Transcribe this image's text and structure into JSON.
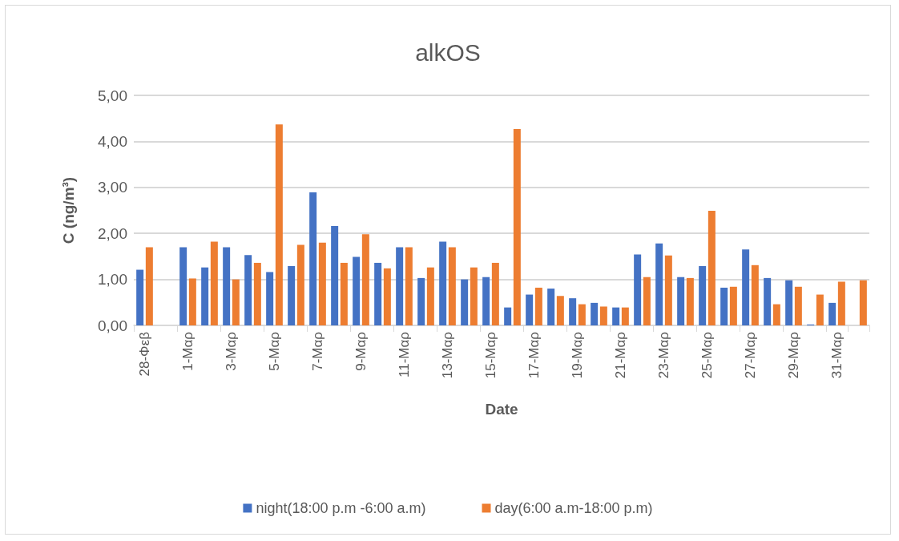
{
  "chart_data": {
    "type": "bar",
    "title": "alkOS",
    "xlabel": "Date",
    "ylabel": "C (ng/m³)",
    "categories": [
      "28-Φεβ",
      null,
      "1-Μαρ",
      null,
      "3-Μαρ",
      null,
      "5-Μαρ",
      null,
      "7-Μαρ",
      null,
      "9-Μαρ",
      null,
      "11-Μαρ",
      null,
      "13-Μαρ",
      null,
      "15-Μαρ",
      null,
      "17-Μαρ",
      null,
      "19-Μαρ",
      null,
      "21-Μαρ",
      null,
      "23-Μαρ",
      null,
      "25-Μαρ",
      null,
      "27-Μαρ",
      null,
      "29-Μαρ",
      null,
      "31-Μαρ",
      null
    ],
    "series": [
      {
        "name": "night(18:00 p.m -6:00 a.m)",
        "color": "#4472c4",
        "values": [
          1.21,
          null,
          1.7,
          1.26,
          1.7,
          1.53,
          1.16,
          1.29,
          2.89,
          2.16,
          1.49,
          1.36,
          1.7,
          1.03,
          1.82,
          1.0,
          1.05,
          0.39,
          0.67,
          0.8,
          0.59,
          0.49,
          0.39,
          1.54,
          1.78,
          1.05,
          1.29,
          0.82,
          1.65,
          1.03,
          0.98,
          0.02,
          0.49,
          null
        ]
      },
      {
        "name": "day(6:00 a.m-18:00 p.m)",
        "color": "#ed7d31",
        "values": [
          1.7,
          null,
          1.02,
          1.82,
          1.0,
          1.36,
          4.37,
          1.75,
          1.8,
          1.36,
          1.98,
          1.24,
          1.7,
          1.26,
          1.7,
          1.26,
          1.36,
          4.27,
          0.82,
          0.64,
          0.46,
          0.41,
          0.39,
          1.05,
          1.52,
          1.03,
          2.49,
          0.84,
          1.31,
          0.46,
          0.84,
          0.67,
          0.95,
          0.98
        ]
      }
    ],
    "ylim": [
      0,
      5
    ],
    "yticks": [
      {
        "value": 0,
        "label": "0,00"
      },
      {
        "value": 1,
        "label": "1,00"
      },
      {
        "value": 2,
        "label": "2,00"
      },
      {
        "value": 3,
        "label": "3,00"
      },
      {
        "value": 4,
        "label": "4,00"
      },
      {
        "value": 5,
        "label": "5,00"
      }
    ],
    "grid": "y",
    "legend": "bottom"
  }
}
